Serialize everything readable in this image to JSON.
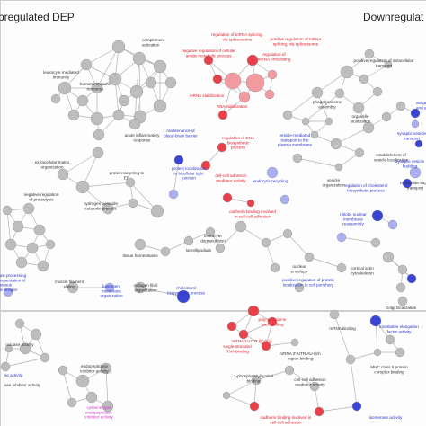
{
  "panels": {
    "left_header": "pregulated DEP",
    "right_header": "Downregulat"
  },
  "colors": {
    "node_gray": "#bdbdbd",
    "node_red": "#e8414b",
    "node_pink": "#f29aa0",
    "node_blue": "#3a45d6",
    "node_lightblue": "#a9aff0",
    "label_dark": "#333333",
    "label_red": "#dd1f2b",
    "label_blue": "#2a35c8",
    "label_magenta": "#d23bd0",
    "edge": "#9a9a9a"
  },
  "labels": [
    {
      "id": "l1",
      "lines": [
        "complement",
        "activation"
      ],
      "color": "dark"
    },
    {
      "id": "l2",
      "lines": [
        "leukocyte mediated",
        "immunity"
      ],
      "color": "dark"
    },
    {
      "id": "l3",
      "lines": [
        "humoral immune",
        "response"
      ],
      "color": "dark"
    },
    {
      "id": "l4",
      "lines": [
        "regulation of mRNA splicing,",
        "via spliceosome"
      ],
      "color": "red"
    },
    {
      "id": "l5",
      "lines": [
        "positive regulation of mRNA",
        "splicing, via spliceosome"
      ],
      "color": "red"
    },
    {
      "id": "l6",
      "lines": [
        "negative regulation of cellular",
        "amide metabolic process"
      ],
      "color": "red"
    },
    {
      "id": "l7",
      "lines": [
        "regulation of",
        "mRNA processing"
      ],
      "color": "red"
    },
    {
      "id": "l8",
      "lines": [
        "positive regulation of intracellular",
        "transport"
      ],
      "color": "dark"
    },
    {
      "id": "l9",
      "lines": [
        "mRNA stabilization"
      ],
      "color": "red"
    },
    {
      "id": "l10",
      "lines": [
        "RNA stabilization"
      ],
      "color": "red"
    },
    {
      "id": "l11",
      "lines": [
        "phagolysosome",
        "assembly"
      ],
      "color": "dark"
    },
    {
      "id": "l12",
      "lines": [
        "organelle",
        "localization"
      ],
      "color": "dark"
    },
    {
      "id": "l13",
      "lines": [
        "antigen",
        "and ex"
      ],
      "color": "blue"
    },
    {
      "id": "l14",
      "lines": [
        "synaptic vesicle",
        "transport"
      ],
      "color": "blue"
    },
    {
      "id": "l15",
      "lines": [
        "acute inflammatory",
        "response"
      ],
      "color": "dark"
    },
    {
      "id": "l16",
      "lines": [
        "maintenance of",
        "blood-brain barrier"
      ],
      "color": "blue"
    },
    {
      "id": "l17",
      "lines": [
        "regulation of DNA",
        "biosynthetic",
        "process"
      ],
      "color": "red"
    },
    {
      "id": "l18",
      "lines": [
        "vesicle-mediated",
        "transport to the",
        "plasma membrane"
      ],
      "color": "blue"
    },
    {
      "id": "l19",
      "lines": [
        "establishment of",
        "vesicle localization"
      ],
      "color": "dark"
    },
    {
      "id": "l20",
      "lines": [
        "synaptic vesicle",
        "budding"
      ],
      "color": "blue"
    },
    {
      "id": "l21",
      "lines": [
        "extracellular matrix",
        "organization"
      ],
      "color": "dark"
    },
    {
      "id": "l22",
      "lines": [
        "protein targeting to",
        "ER"
      ],
      "color": "dark"
    },
    {
      "id": "l23",
      "lines": [
        "protein localization",
        "to bicellular tight",
        "junction"
      ],
      "color": "blue"
    },
    {
      "id": "l24",
      "lines": [
        "cell-cell adhesion",
        "mediator activity"
      ],
      "color": "red"
    },
    {
      "id": "l25",
      "lines": [
        "endocytic recycling"
      ],
      "color": "blue"
    },
    {
      "id": "l26",
      "lines": [
        "vesicle",
        "organization"
      ],
      "color": "dark"
    },
    {
      "id": "l27",
      "lines": [
        "regulation of cholesterol",
        "biosynthetic process"
      ],
      "color": "blue"
    },
    {
      "id": "l28",
      "lines": [
        "nucleotide-sugar",
        "transport"
      ],
      "color": "dark"
    },
    {
      "id": "l29",
      "lines": [
        "negative regulation",
        "of proteolysis"
      ],
      "color": "dark"
    },
    {
      "id": "l30",
      "lines": [
        "hydrogen peroxide",
        "catabolic process"
      ],
      "color": "dark"
    },
    {
      "id": "l31",
      "lines": [
        "cadherin binding involved",
        "in cell-cell adhesion"
      ],
      "color": "red"
    },
    {
      "id": "l32",
      "lines": [
        "mitotic nuclear",
        "membrane",
        "reassembly"
      ],
      "color": "blue"
    },
    {
      "id": "l33",
      "lines": [
        "leukocyte",
        "degranulation"
      ],
      "color": "dark"
    },
    {
      "id": "l34",
      "lines": [
        "tissue homeostasis"
      ],
      "color": "dark"
    },
    {
      "id": "l35",
      "lines": [
        "lamellipodium"
      ],
      "color": "dark"
    },
    {
      "id": "l36",
      "lines": [
        "nuclear",
        "envelope"
      ],
      "color": "dark"
    },
    {
      "id": "l37",
      "lines": [
        "cortical actin",
        "cytoskeleton"
      ],
      "color": "dark"
    },
    {
      "id": "l38",
      "lines": [
        "gen processing",
        "presentation of",
        "genous",
        "de antigen"
      ],
      "color": "blue"
    },
    {
      "id": "l39",
      "lines": [
        "muscle filament",
        "sliding"
      ],
      "color": "dark"
    },
    {
      "id": "l40",
      "lines": [
        "basement",
        "membrane",
        "organization"
      ],
      "color": "blue"
    },
    {
      "id": "l41",
      "lines": [
        "collagen fibril",
        "organization"
      ],
      "color": "dark"
    },
    {
      "id": "l42",
      "lines": [
        "cholesterol",
        "biosynthetic process"
      ],
      "color": "blue"
    },
    {
      "id": "l43",
      "lines": [
        "positive regulation of protein",
        "localization to cell periphery"
      ],
      "color": "blue"
    },
    {
      "id": "l44",
      "lines": [
        "Golgi localization"
      ],
      "color": "dark"
    },
    {
      "id": "l45",
      "lines": [
        "poly-pyrimidine",
        "tract binding"
      ],
      "color": "red"
    },
    {
      "id": "l46",
      "lines": [
        "mRNA binding"
      ],
      "color": "dark"
    },
    {
      "id": "l47",
      "lines": [
        "translation elongation",
        "factor activity"
      ],
      "color": "blue"
    },
    {
      "id": "l48",
      "lines": [
        "mRNA 3'-UTR binding"
      ],
      "color": "red"
    },
    {
      "id": "l49",
      "lines": [
        "single-stranded",
        "RNA binding"
      ],
      "color": "red"
    },
    {
      "id": "l50",
      "lines": [
        "mRNA 3'-UTR AU-rich",
        "region binding"
      ],
      "color": "dark"
    },
    {
      "id": "l51",
      "lines": [
        "oxidase activity"
      ],
      "color": "dark"
    },
    {
      "id": "l52",
      "lines": [
        "endopeptidase",
        "inhibitor activity"
      ],
      "color": "dark"
    },
    {
      "id": "l53",
      "lines": [
        "MHC class II protein",
        "complex binding"
      ],
      "color": "dark"
    },
    {
      "id": "l54",
      "lines": [
        "1-phosphatidylinositol",
        "binding"
      ],
      "color": "dark"
    },
    {
      "id": "l55",
      "lines": [
        "cell-cell adhesion",
        "mediator activity"
      ],
      "color": "dark"
    },
    {
      "id": "l56",
      "lines": [
        "se activity"
      ],
      "color": "blue"
    },
    {
      "id": "l57",
      "lines": [
        "ase inhibitor activity"
      ],
      "color": "dark"
    },
    {
      "id": "l58",
      "lines": [
        "cysteine-type",
        "endopeptidase",
        "inhibitor activity"
      ],
      "color": "magenta"
    },
    {
      "id": "l59",
      "lines": [
        "cadherin binding involved in",
        "cell-cell adhesion"
      ],
      "color": "red"
    },
    {
      "id": "l60",
      "lines": [
        "isomerase activity"
      ],
      "color": "blue"
    }
  ]
}
